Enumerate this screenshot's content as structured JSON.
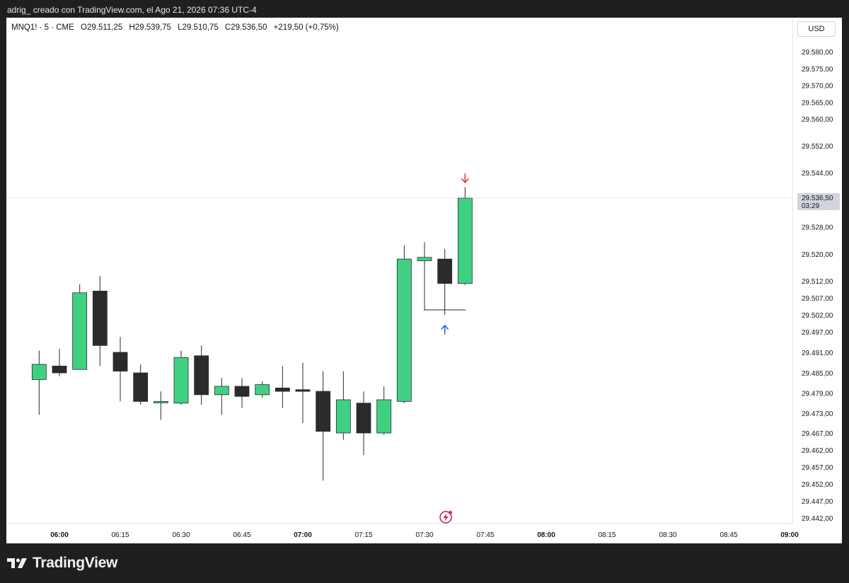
{
  "caption": "adrig_ creado con TradingView.com, el Ago 21, 2026 07:36 UTC-4",
  "legend": {
    "symbol": "MNQ1! · 5 · CME",
    "open": "O29.511,25",
    "high": "H29.539,75",
    "low": "L29.510,75",
    "close": "C29.536,50",
    "change": "+219,50 (+0,75%)"
  },
  "currency": "USD",
  "brand": "TradingView",
  "colors": {
    "up": "#3fd084",
    "down": "#2b2b2b",
    "wick": "#2b2b2b",
    "arrow_down": "#e0343e",
    "arrow_up": "#2962ff",
    "event": "#c2185b"
  },
  "chart_data": {
    "type": "candlestick",
    "price_label": {
      "value": "29.536,50",
      "countdown": "03:29"
    },
    "y_ticks": [
      {
        "label": "29.580,00",
        "value": 29580
      },
      {
        "label": "29.575,00",
        "value": 29575
      },
      {
        "label": "29.570,00",
        "value": 29570
      },
      {
        "label": "29.565,00",
        "value": 29565
      },
      {
        "label": "29.560,00",
        "value": 29560
      },
      {
        "label": "29.552,00",
        "value": 29552
      },
      {
        "label": "29.544,00",
        "value": 29544
      },
      {
        "label": "29.528,00",
        "value": 29528
      },
      {
        "label": "29.520,00",
        "value": 29520
      },
      {
        "label": "29.512,00",
        "value": 29512
      },
      {
        "label": "29.507,00",
        "value": 29507
      },
      {
        "label": "29.502,00",
        "value": 29502
      },
      {
        "label": "29.497,00",
        "value": 29497
      },
      {
        "label": "29.491,00",
        "value": 29491
      },
      {
        "label": "29.485,00",
        "value": 29485
      },
      {
        "label": "29.479,00",
        "value": 29479
      },
      {
        "label": "29.473,00",
        "value": 29473
      },
      {
        "label": "29.467,00",
        "value": 29467
      },
      {
        "label": "29.462,00",
        "value": 29462
      },
      {
        "label": "29.457,00",
        "value": 29457
      },
      {
        "label": "29.452,00",
        "value": 29452
      },
      {
        "label": "29.447,00",
        "value": 29447
      },
      {
        "label": "29.442,00",
        "value": 29442
      }
    ],
    "x_ticks": [
      {
        "label": "06:00",
        "bold": true
      },
      {
        "label": "06:15",
        "bold": false
      },
      {
        "label": "06:30",
        "bold": false
      },
      {
        "label": "06:45",
        "bold": false
      },
      {
        "label": "07:00",
        "bold": true
      },
      {
        "label": "07:15",
        "bold": false
      },
      {
        "label": "07:30",
        "bold": false
      },
      {
        "label": "07:45",
        "bold": false
      },
      {
        "label": "08:00",
        "bold": true
      },
      {
        "label": "08:15",
        "bold": false
      },
      {
        "label": "08:30",
        "bold": false
      },
      {
        "label": "08:45",
        "bold": false
      },
      {
        "label": "09:00",
        "bold": true
      }
    ],
    "candles": [
      {
        "time": "05:55",
        "open": 29483.0,
        "high": 29491.5,
        "low": 29472.5,
        "close": 29487.5
      },
      {
        "time": "06:00",
        "open": 29487.0,
        "high": 29492.0,
        "low": 29484.0,
        "close": 29485.0
      },
      {
        "time": "06:05",
        "open": 29486.0,
        "high": 29511.0,
        "low": 29486.0,
        "close": 29508.5
      },
      {
        "time": "06:10",
        "open": 29509.0,
        "high": 29513.5,
        "low": 29487.0,
        "close": 29493.0
      },
      {
        "time": "06:15",
        "open": 29491.0,
        "high": 29495.5,
        "low": 29476.5,
        "close": 29485.5
      },
      {
        "time": "06:20",
        "open": 29485.0,
        "high": 29487.5,
        "low": 29475.5,
        "close": 29476.5
      },
      {
        "time": "06:25",
        "open": 29476.5,
        "high": 29479.5,
        "low": 29471.0,
        "close": 29476.5
      },
      {
        "time": "06:30",
        "open": 29476.0,
        "high": 29491.5,
        "low": 29475.5,
        "close": 29489.5
      },
      {
        "time": "06:35",
        "open": 29490.0,
        "high": 29493.0,
        "low": 29475.5,
        "close": 29478.5
      },
      {
        "time": "06:40",
        "open": 29478.5,
        "high": 29483.5,
        "low": 29472.5,
        "close": 29481.0
      },
      {
        "time": "06:45",
        "open": 29481.0,
        "high": 29483.5,
        "low": 29474.5,
        "close": 29478.0
      },
      {
        "time": "06:50",
        "open": 29478.5,
        "high": 29482.5,
        "low": 29477.5,
        "close": 29481.5
      },
      {
        "time": "06:55",
        "open": 29480.5,
        "high": 29487.0,
        "low": 29474.5,
        "close": 29479.5
      },
      {
        "time": "07:00",
        "open": 29480.0,
        "high": 29488.0,
        "low": 29470.0,
        "close": 29479.5
      },
      {
        "time": "07:05",
        "open": 29479.5,
        "high": 29485.5,
        "low": 29453.0,
        "close": 29467.5
      },
      {
        "time": "07:10",
        "open": 29467.0,
        "high": 29485.5,
        "low": 29465.0,
        "close": 29477.0
      },
      {
        "time": "07:15",
        "open": 29476.0,
        "high": 29479.5,
        "low": 29460.5,
        "close": 29467.0
      },
      {
        "time": "07:20",
        "open": 29467.0,
        "high": 29481.0,
        "low": 29466.5,
        "close": 29477.0
      },
      {
        "time": "07:25",
        "open": 29476.5,
        "high": 29522.5,
        "low": 29476.0,
        "close": 29518.5
      },
      {
        "time": "07:30",
        "open": 29518.0,
        "high": 29523.5,
        "low": 29503.5,
        "close": 29519.0
      },
      {
        "time": "07:35",
        "open": 29518.5,
        "high": 29521.5,
        "low": 29502.0,
        "close": 29511.25
      },
      {
        "time": "07:40",
        "open": 29511.25,
        "high": 29539.75,
        "low": 29510.75,
        "close": 29536.5
      }
    ]
  }
}
